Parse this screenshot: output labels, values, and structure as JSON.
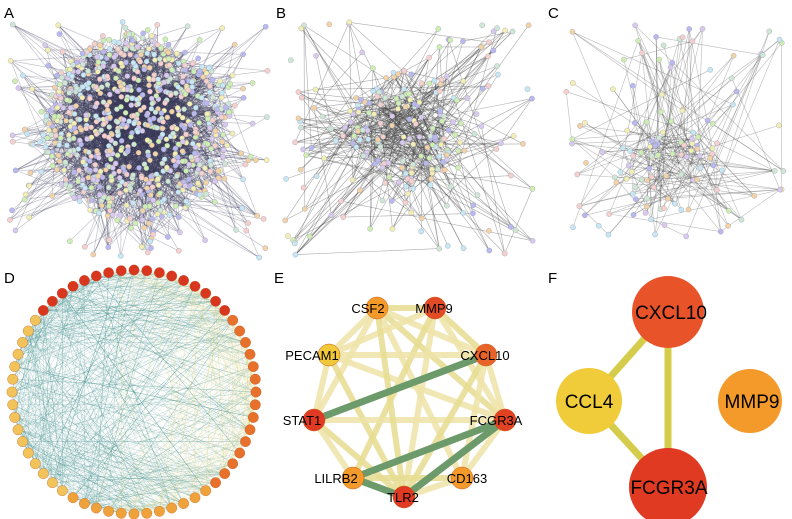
{
  "panels": {
    "A": {
      "label": "A"
    },
    "B": {
      "label": "B"
    },
    "C": {
      "label": "C"
    },
    "D": {
      "label": "D"
    },
    "E": {
      "label": "E",
      "nodes": [
        {
          "id": "CSF2",
          "label": "CSF2",
          "color": "#f39a2b"
        },
        {
          "id": "MMP9",
          "label": "MMP9",
          "color": "#e34a26"
        },
        {
          "id": "PECAM1",
          "label": "PECAM1",
          "color": "#f0c83a"
        },
        {
          "id": "CXCL10",
          "label": "CXCL10",
          "color": "#e8632a"
        },
        {
          "id": "STAT1",
          "label": "STAT1",
          "color": "#e03a22"
        },
        {
          "id": "FCGR3A",
          "label": "FCGR3A",
          "color": "#e04222"
        },
        {
          "id": "LILRB2",
          "label": "LILRB2",
          "color": "#f39a2b"
        },
        {
          "id": "CD163",
          "label": "CD163",
          "color": "#f39a2b"
        },
        {
          "id": "TLR2",
          "label": "TLR2",
          "color": "#e03a22"
        }
      ]
    },
    "F": {
      "label": "F",
      "nodes": [
        {
          "id": "CXCL10",
          "label": "CXCL10",
          "color": "#e8532a"
        },
        {
          "id": "CCL4",
          "label": "CCL4",
          "color": "#f1cc3a"
        },
        {
          "id": "FCGR3A",
          "label": "FCGR3A",
          "color": "#e03a22"
        },
        {
          "id": "MMP9",
          "label": "MMP9",
          "color": "#f39a2b"
        }
      ]
    }
  }
}
